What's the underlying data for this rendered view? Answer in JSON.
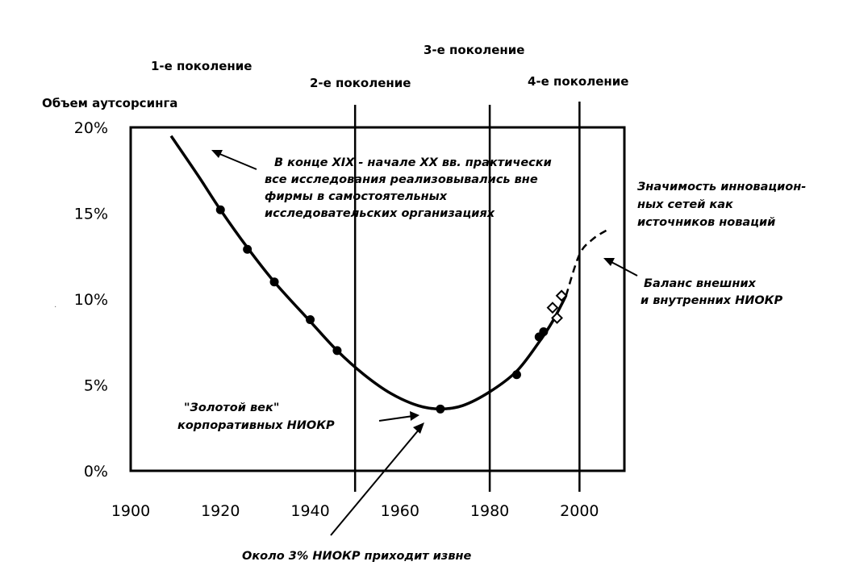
{
  "chart_data": {
    "type": "line",
    "ylabel": "Объем аутсорсинга",
    "x_ticks": [
      "1900",
      "1920",
      "1940",
      "1960",
      "1980",
      "2000"
    ],
    "y_ticks": [
      "0%",
      "5%",
      "10%",
      "15%",
      "20%"
    ],
    "xlim": [
      1900,
      2010
    ],
    "ylim": [
      0,
      20
    ],
    "generations": [
      {
        "label": "1-е поколение"
      },
      {
        "label": "2-е поколение",
        "x": 1950
      },
      {
        "label": "3-е поколение",
        "x": 1980
      },
      {
        "label": "4-е поколение",
        "x": 2000
      }
    ],
    "series": [
      {
        "style": "solid",
        "x": [
          1909,
          1915,
          1920,
          1926,
          1932,
          1940,
          1946,
          1952,
          1958,
          1964,
          1969,
          1974,
          1980,
          1986,
          1991,
          1994,
          1997
        ],
        "y": [
          19.5,
          17.2,
          15.2,
          13.0,
          11.0,
          8.7,
          7.0,
          5.6,
          4.5,
          3.8,
          3.6,
          3.8,
          4.6,
          5.8,
          7.5,
          8.7,
          10.2
        ]
      },
      {
        "style": "dashed",
        "x": [
          1997,
          2000,
          2003,
          2006
        ],
        "y": [
          10.2,
          12.6,
          13.5,
          14.0
        ]
      }
    ],
    "markers_filled": [
      {
        "x": 1920,
        "y": 15.2
      },
      {
        "x": 1926,
        "y": 12.9
      },
      {
        "x": 1932,
        "y": 11.0
      },
      {
        "x": 1940,
        "y": 8.8
      },
      {
        "x": 1946,
        "y": 7.0
      },
      {
        "x": 1969,
        "y": 3.6
      },
      {
        "x": 1986,
        "y": 5.6
      },
      {
        "x": 1991,
        "y": 7.8
      },
      {
        "x": 1992,
        "y": 8.1
      }
    ],
    "markers_open": [
      {
        "x": 1994,
        "y": 9.5
      },
      {
        "x": 1995,
        "y": 8.9
      },
      {
        "x": 1996,
        "y": 10.2
      }
    ],
    "annotations": [
      {
        "lines": [
          "В конце XIX - начале XX вв. практически",
          "все исследования реализовывались вне",
          "фирмы в самостоятельных",
          "исследовательских организациях"
        ]
      },
      {
        "lines": [
          "\"Золотой век\"",
          "корпоративных НИОКР"
        ]
      },
      {
        "lines": [
          "Около 3% НИОКР приходит извне"
        ]
      },
      {
        "lines": [
          "Значимость инновацион-",
          "ных сетей как",
          "источников новаций"
        ]
      },
      {
        "lines": [
          "Баланс внешних",
          "и внутренних НИОКР"
        ]
      }
    ]
  }
}
